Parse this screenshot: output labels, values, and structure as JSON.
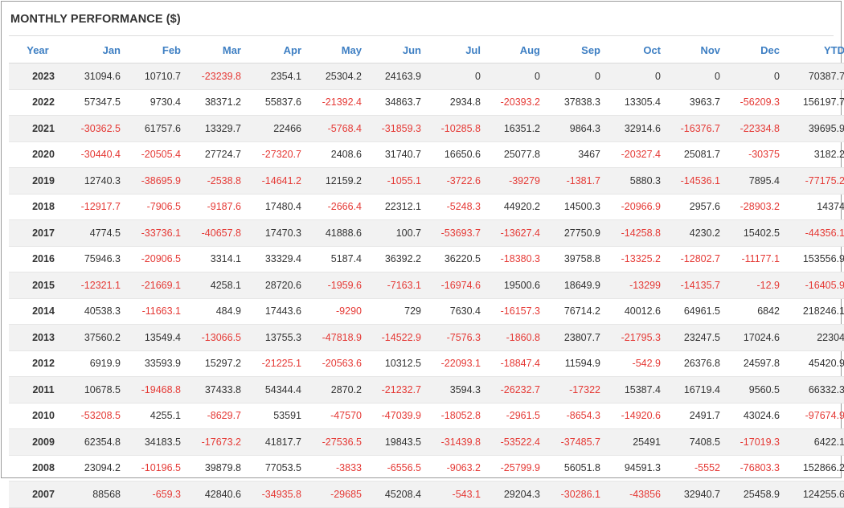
{
  "title": "MONTHLY PERFORMANCE ($)",
  "columns": [
    "Year",
    "Jan",
    "Feb",
    "Mar",
    "Apr",
    "May",
    "Jun",
    "Jul",
    "Aug",
    "Sep",
    "Oct",
    "Nov",
    "Dec",
    "YTD"
  ],
  "colors": {
    "header": "#3e7fc3",
    "negative": "#e53935",
    "stripe": "#f2f2f2"
  },
  "rows": [
    {
      "year": "2023",
      "values": [
        "31094.6",
        "10710.7",
        "-23239.8",
        "2354.1",
        "25304.2",
        "24163.9",
        "0",
        "0",
        "0",
        "0",
        "0",
        "0",
        "70387.7"
      ]
    },
    {
      "year": "2022",
      "values": [
        "57347.5",
        "9730.4",
        "38371.2",
        "55837.6",
        "-21392.4",
        "34863.7",
        "2934.8",
        "-20393.2",
        "37838.3",
        "13305.4",
        "3963.7",
        "-56209.3",
        "156197.7"
      ]
    },
    {
      "year": "2021",
      "values": [
        "-30362.5",
        "61757.6",
        "13329.7",
        "22466",
        "-5768.4",
        "-31859.3",
        "-10285.8",
        "16351.2",
        "9864.3",
        "32914.6",
        "-16376.7",
        "-22334.8",
        "39695.9"
      ]
    },
    {
      "year": "2020",
      "values": [
        "-30440.4",
        "-20505.4",
        "27724.7",
        "-27320.7",
        "2408.6",
        "31740.7",
        "16650.6",
        "25077.8",
        "3467",
        "-20327.4",
        "25081.7",
        "-30375",
        "3182.2"
      ]
    },
    {
      "year": "2019",
      "values": [
        "12740.3",
        "-38695.9",
        "-2538.8",
        "-14641.2",
        "12159.2",
        "-1055.1",
        "-3722.6",
        "-39279",
        "-1381.7",
        "5880.3",
        "-14536.1",
        "7895.4",
        "-77175.2"
      ]
    },
    {
      "year": "2018",
      "values": [
        "-12917.7",
        "-7906.5",
        "-9187.6",
        "17480.4",
        "-2666.4",
        "22312.1",
        "-5248.3",
        "44920.2",
        "14500.3",
        "-20966.9",
        "2957.6",
        "-28903.2",
        "14374"
      ]
    },
    {
      "year": "2017",
      "values": [
        "4774.5",
        "-33736.1",
        "-40657.8",
        "17470.3",
        "41888.6",
        "100.7",
        "-53693.7",
        "-13627.4",
        "27750.9",
        "-14258.8",
        "4230.2",
        "15402.5",
        "-44356.1"
      ]
    },
    {
      "year": "2016",
      "values": [
        "75946.3",
        "-20906.5",
        "3314.1",
        "33329.4",
        "5187.4",
        "36392.2",
        "36220.5",
        "-18380.3",
        "39758.8",
        "-13325.2",
        "-12802.7",
        "-11177.1",
        "153556.9"
      ]
    },
    {
      "year": "2015",
      "values": [
        "-12321.1",
        "-21669.1",
        "4258.1",
        "28720.6",
        "-1959.6",
        "-7163.1",
        "-16974.6",
        "19500.6",
        "18649.9",
        "-13299",
        "-14135.7",
        "-12.9",
        "-16405.9"
      ]
    },
    {
      "year": "2014",
      "values": [
        "40538.3",
        "-11663.1",
        "484.9",
        "17443.6",
        "-9290",
        "729",
        "7630.4",
        "-16157.3",
        "76714.2",
        "40012.6",
        "64961.5",
        "6842",
        "218246.1"
      ]
    },
    {
      "year": "2013",
      "values": [
        "37560.2",
        "13549.4",
        "-13066.5",
        "13755.3",
        "-47818.9",
        "-14522.9",
        "-7576.3",
        "-1860.8",
        "23807.7",
        "-21795.3",
        "23247.5",
        "17024.6",
        "22304"
      ]
    },
    {
      "year": "2012",
      "values": [
        "6919.9",
        "33593.9",
        "15297.2",
        "-21225.1",
        "-20563.6",
        "10312.5",
        "-22093.1",
        "-18847.4",
        "11594.9",
        "-542.9",
        "26376.8",
        "24597.8",
        "45420.9"
      ]
    },
    {
      "year": "2011",
      "values": [
        "10678.5",
        "-19468.8",
        "37433.8",
        "54344.4",
        "2870.2",
        "-21232.7",
        "3594.3",
        "-26232.7",
        "-17322",
        "15387.4",
        "16719.4",
        "9560.5",
        "66332.3"
      ]
    },
    {
      "year": "2010",
      "values": [
        "-53208.5",
        "4255.1",
        "-8629.7",
        "53591",
        "-47570",
        "-47039.9",
        "-18052.8",
        "-2961.5",
        "-8654.3",
        "-14920.6",
        "2491.7",
        "43024.6",
        "-97674.9"
      ]
    },
    {
      "year": "2009",
      "values": [
        "62354.8",
        "34183.5",
        "-17673.2",
        "41817.7",
        "-27536.5",
        "19843.5",
        "-31439.8",
        "-53522.4",
        "-37485.7",
        "25491",
        "7408.5",
        "-17019.3",
        "6422.1"
      ]
    },
    {
      "year": "2008",
      "values": [
        "23094.2",
        "-10196.5",
        "39879.8",
        "77053.5",
        "-3833",
        "-6556.5",
        "-9063.2",
        "-25799.9",
        "56051.8",
        "94591.3",
        "-5552",
        "-76803.3",
        "152866.2"
      ]
    },
    {
      "year": "2007",
      "values": [
        "88568",
        "-659.3",
        "42840.6",
        "-34935.8",
        "-29685",
        "45208.4",
        "-543.1",
        "29204.3",
        "-30286.1",
        "-43856",
        "32940.7",
        "25458.9",
        "124255.6"
      ]
    }
  ]
}
